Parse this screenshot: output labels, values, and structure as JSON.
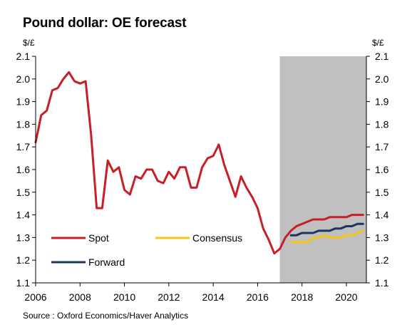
{
  "chart_data": {
    "type": "line",
    "title": "Pound dollar: OE forecast",
    "source": "Source : Oxford Economics/Haver Analytics",
    "y_unit_left": "$/£",
    "y_unit_right": "$/£",
    "xlim": [
      2006,
      2020.9
    ],
    "ylim": [
      1.1,
      2.1
    ],
    "x_ticks": [
      2006,
      2008,
      2010,
      2012,
      2014,
      2016,
      2018,
      2020
    ],
    "y_ticks": [
      1.1,
      1.2,
      1.3,
      1.4,
      1.5,
      1.6,
      1.7,
      1.8,
      1.9,
      2.0,
      2.1
    ],
    "y_tick_labels": [
      "1.1",
      "1.2",
      "1.3",
      "1.4",
      "1.5",
      "1.6",
      "1.7",
      "1.8",
      "1.9",
      "2.0",
      "2.1"
    ],
    "grid": false,
    "forecast_shading": {
      "start": 2017.0,
      "end": 2020.9,
      "color": "#c0c0c0"
    },
    "series": [
      {
        "name": "Spot",
        "color": "#c81e28",
        "x": [
          2006.0,
          2006.25,
          2006.5,
          2006.75,
          2007.0,
          2007.25,
          2007.5,
          2007.75,
          2008.0,
          2008.25,
          2008.5,
          2008.75,
          2009.0,
          2009.25,
          2009.5,
          2009.75,
          2010.0,
          2010.25,
          2010.5,
          2010.75,
          2011.0,
          2011.25,
          2011.5,
          2011.75,
          2012.0,
          2012.25,
          2012.5,
          2012.75,
          2013.0,
          2013.25,
          2013.5,
          2013.75,
          2014.0,
          2014.25,
          2014.5,
          2014.75,
          2015.0,
          2015.25,
          2015.5,
          2015.75,
          2016.0,
          2016.25,
          2016.5,
          2016.75,
          2017.0,
          2017.25,
          2017.5,
          2017.75,
          2018.0,
          2018.25,
          2018.5,
          2018.75,
          2019.0,
          2019.25,
          2019.5,
          2019.75,
          2020.0,
          2020.25,
          2020.5,
          2020.75
        ],
        "values": [
          1.72,
          1.84,
          1.86,
          1.95,
          1.96,
          2.0,
          2.03,
          1.99,
          1.98,
          1.99,
          1.75,
          1.43,
          1.43,
          1.64,
          1.59,
          1.61,
          1.51,
          1.49,
          1.57,
          1.56,
          1.6,
          1.6,
          1.55,
          1.54,
          1.59,
          1.56,
          1.61,
          1.61,
          1.52,
          1.52,
          1.61,
          1.65,
          1.66,
          1.71,
          1.62,
          1.55,
          1.48,
          1.57,
          1.52,
          1.48,
          1.43,
          1.34,
          1.29,
          1.23,
          1.25,
          1.3,
          1.33,
          1.35,
          1.36,
          1.37,
          1.38,
          1.38,
          1.38,
          1.39,
          1.39,
          1.39,
          1.39,
          1.4,
          1.4,
          1.4
        ]
      },
      {
        "name": "Consensus",
        "color": "#f5c518",
        "x": [
          2017.5,
          2017.75,
          2018.0,
          2018.25,
          2018.5,
          2018.75,
          2019.0,
          2019.25,
          2019.5,
          2019.75,
          2020.0,
          2020.25,
          2020.5,
          2020.75
        ],
        "values": [
          1.28,
          1.28,
          1.28,
          1.28,
          1.3,
          1.3,
          1.31,
          1.3,
          1.3,
          1.3,
          1.31,
          1.31,
          1.32,
          1.33
        ]
      },
      {
        "name": "Forward",
        "color": "#1b3563",
        "x": [
          2017.5,
          2017.75,
          2018.0,
          2018.25,
          2018.5,
          2018.75,
          2019.0,
          2019.25,
          2019.5,
          2019.75,
          2020.0,
          2020.25,
          2020.5,
          2020.75
        ],
        "values": [
          1.31,
          1.31,
          1.32,
          1.32,
          1.32,
          1.33,
          1.33,
          1.33,
          1.34,
          1.34,
          1.35,
          1.35,
          1.36,
          1.36
        ]
      }
    ],
    "legend": [
      {
        "label": "Spot",
        "series": 0
      },
      {
        "label": "Consensus",
        "series": 1
      },
      {
        "label": "Forward",
        "series": 2
      }
    ],
    "legend_placement": "bottom-left"
  }
}
